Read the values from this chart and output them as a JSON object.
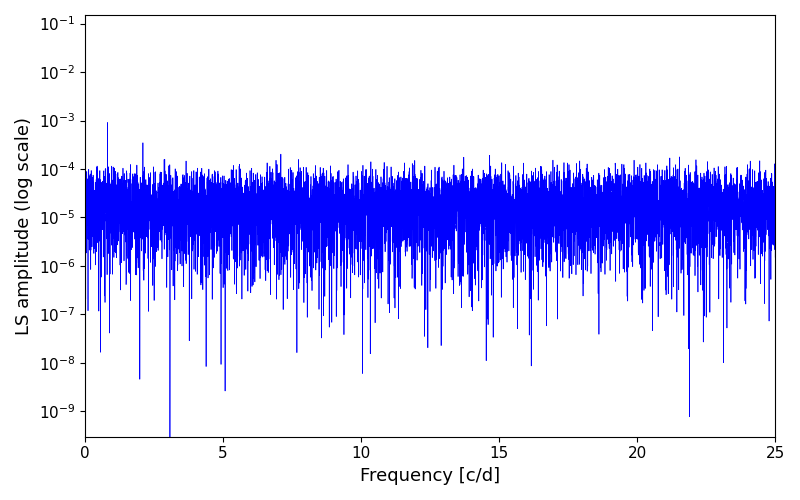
{
  "xlabel": "Frequency [c/d]",
  "ylabel": "LS amplitude (log scale)",
  "line_color": "#0000ff",
  "line_width": 0.5,
  "xlim": [
    0,
    25
  ],
  "ylim": [
    3e-10,
    0.15
  ],
  "xfreq_max": 25.0,
  "n_points": 8000,
  "background_color": "#ffffff",
  "figsize": [
    8.0,
    5.0
  ],
  "dpi": 100,
  "seed": 12345,
  "xticks": [
    0,
    5,
    10,
    15,
    20,
    25
  ]
}
